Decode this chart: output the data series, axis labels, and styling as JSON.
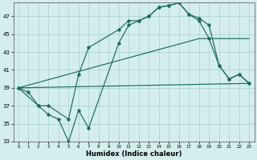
{
  "title": "",
  "xlabel": "Humidex (Indice chaleur)",
  "background_color": "#d4eeed",
  "line_color": "#1a6b5e",
  "grid_color": "#aacece",
  "xlim": [
    -0.5,
    23.5
  ],
  "ylim": [
    33,
    48.5
  ],
  "yticks": [
    33,
    35,
    37,
    39,
    41,
    43,
    45,
    47
  ],
  "xticks": [
    0,
    1,
    2,
    3,
    4,
    5,
    6,
    7,
    8,
    9,
    10,
    11,
    12,
    13,
    14,
    15,
    16,
    17,
    18,
    19,
    20,
    21,
    22,
    23
  ],
  "line1_x": [
    0,
    1,
    2,
    3,
    4,
    5,
    6,
    7,
    10,
    11,
    12,
    13,
    14,
    15,
    16,
    17,
    18,
    19,
    20,
    21,
    22,
    23
  ],
  "line1_y": [
    39,
    38.5,
    37,
    36,
    35.5,
    33,
    36.5,
    34.5,
    44,
    46,
    46.5,
    47,
    48,
    48.2,
    48.5,
    47.2,
    46.8,
    46,
    41.5,
    40,
    40.5,
    39.5
  ],
  "line2_x": [
    0,
    2,
    3,
    5,
    6,
    7,
    10,
    11,
    12,
    13,
    14,
    15,
    16,
    17,
    18,
    19,
    20,
    21,
    22,
    23
  ],
  "line2_y": [
    39,
    37,
    37,
    35.5,
    40.5,
    43.5,
    45.5,
    46.5,
    46.5,
    47,
    48,
    48.2,
    48.5,
    47.2,
    46.5,
    44.5,
    41.5,
    40,
    40.5,
    39.5
  ],
  "line3_x": [
    0,
    23
  ],
  "line3_y": [
    39,
    39.5
  ],
  "line4_x": [
    0,
    18,
    23
  ],
  "line4_y": [
    39,
    44.5,
    44.5
  ]
}
